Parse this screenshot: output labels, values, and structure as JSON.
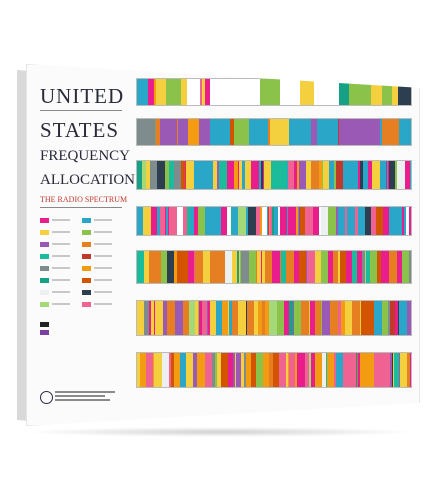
{
  "poster": {
    "title_line1": "UNITED",
    "title_line2": "STATES",
    "title_line3": "FREQUENCY",
    "title_line4": "ALLOCATIONS",
    "subtitle": "THE RADIO SPECTRUM"
  },
  "colors": {
    "frame": "#fbfbfb",
    "title": "#2a2a3a",
    "subtitle": "#c0392b",
    "palette": [
      "#e91e8c",
      "#2aa6c8",
      "#f4d03f",
      "#8bc34a",
      "#9b59b6",
      "#e67e22",
      "#1abc9c",
      "#c0392b",
      "#7f8c8d",
      "#f39c12",
      "#16a085",
      "#d35400",
      "#ecf0f1",
      "#2c3e50",
      "#a3d977",
      "#f06292"
    ]
  }
}
